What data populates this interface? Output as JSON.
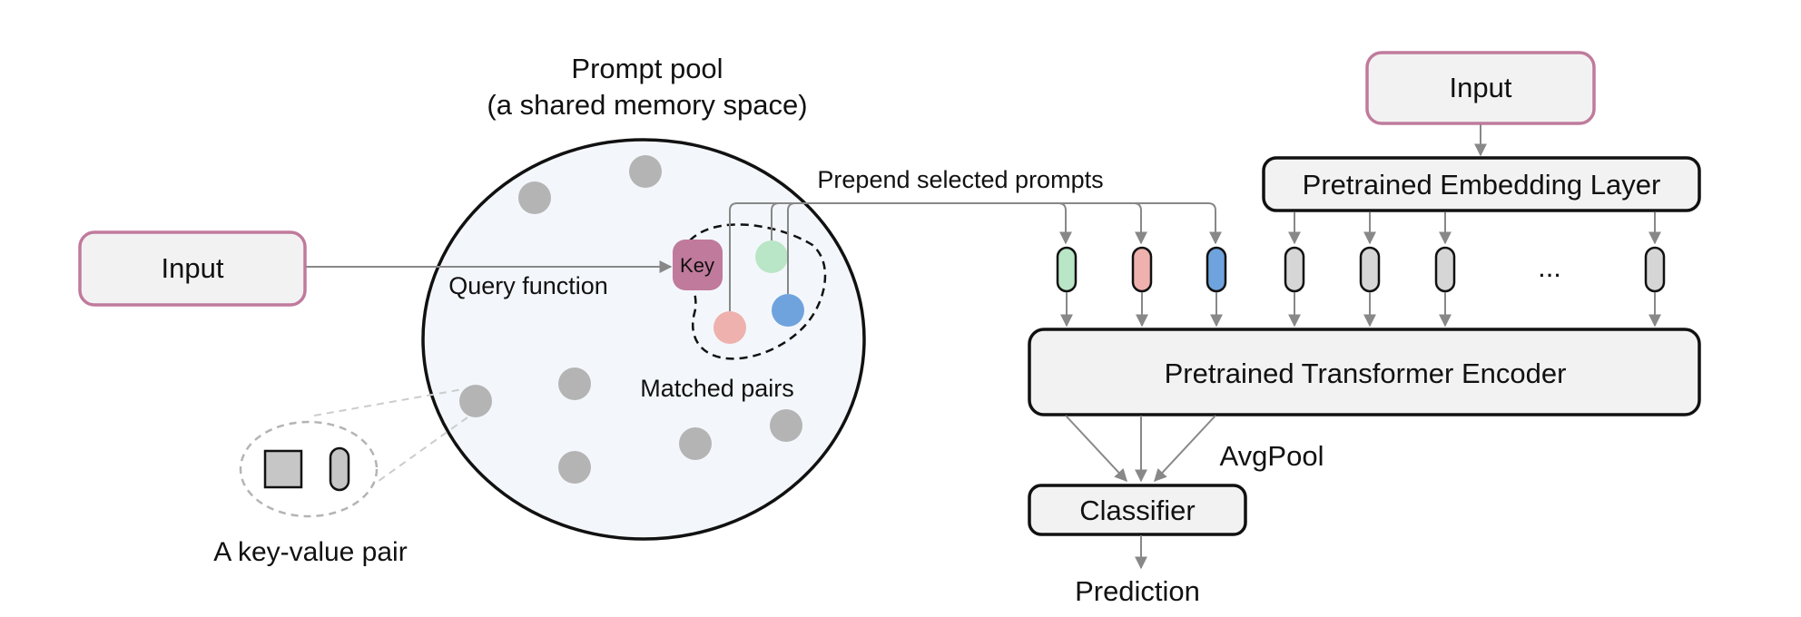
{
  "labels": {
    "prompt_pool_title": "Prompt pool",
    "prompt_pool_subtitle": "(a shared memory space)",
    "left_input": "Input",
    "right_input": "Input",
    "query_function": "Query function",
    "key": "Key",
    "matched_pairs": "Matched pairs",
    "key_value_pair": "A key-value pair",
    "prepend_selected_prompts": "Prepend selected prompts",
    "embedding_layer": "Pretrained Embedding Layer",
    "transformer_encoder": "Pretrained Transformer Encoder",
    "avgpool": "AvgPool",
    "classifier": "Classifier",
    "prediction": "Prediction",
    "ellipsis": "..."
  },
  "colors": {
    "input_border": "#c07a9c",
    "key_fill": "#c07a9c",
    "box_fill": "#f2f2f2",
    "pool_fill": "#f3f7fb",
    "pool_circle": "#b4b4b4",
    "prompt_green": "#b9e6c6",
    "prompt_pink": "#eeb1ad",
    "prompt_blue": "#6fa3dd",
    "token_gray": "#d6d6d6",
    "arrow": "#888888"
  },
  "tokens": [
    "prompt-green",
    "prompt-pink",
    "prompt-blue",
    "embedding",
    "embedding",
    "embedding",
    "embedding"
  ]
}
